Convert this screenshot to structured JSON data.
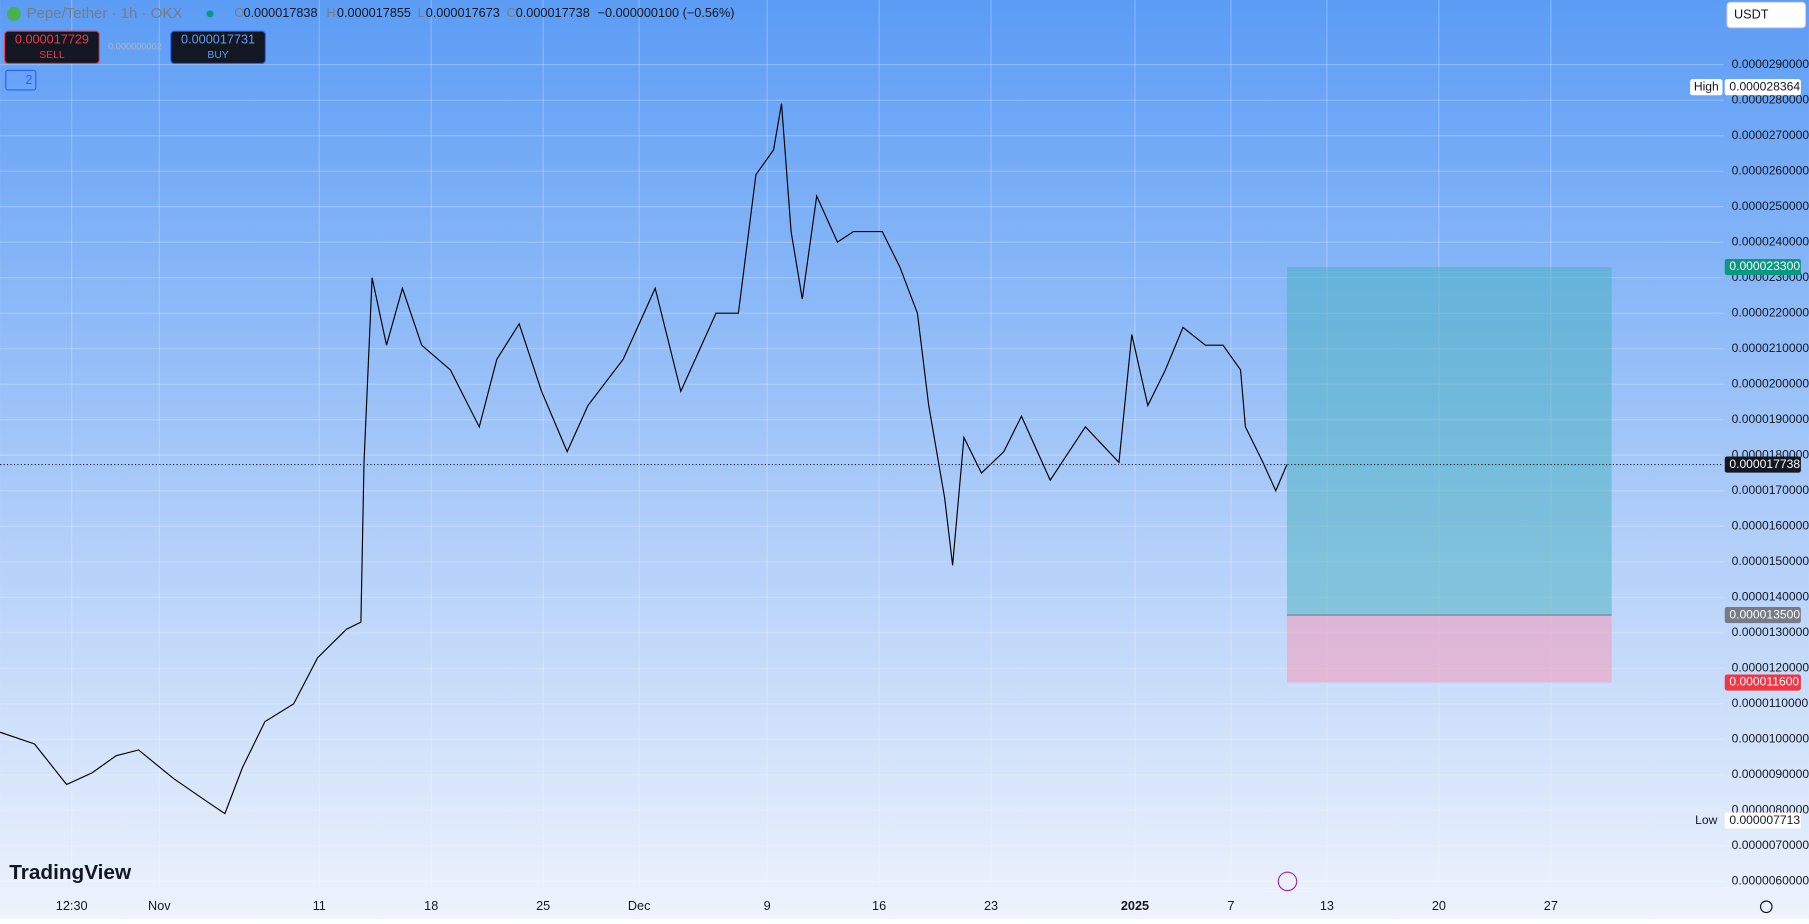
{
  "header": {
    "symbol": "Pepe/Tether · 1h · OKX",
    "open_label": "O",
    "open": "0.000017838",
    "high_label": "H",
    "high": "0.000017855",
    "low_label": "L",
    "low": "0.000017673",
    "close_label": "C",
    "close": "0.000017738",
    "change": "−0.000000100 (−0.56%)",
    "sell_price": "0.000017729",
    "sell_label": "SELL",
    "spread": "0.000000002",
    "buy_price": "0.000017731",
    "buy_label": "BUY",
    "indicators": "2",
    "currency": "USDT",
    "brand": "TradingView"
  },
  "chart_data": {
    "type": "line",
    "x": [
      -9.96,
      -7.8,
      -5.8,
      -4.2,
      -2.7,
      -1.3,
      0.9,
      3.0,
      4.1,
      5.2,
      6.6,
      8.4,
      9.9,
      11.7,
      12.6,
      12.8,
      13.3,
      14.2,
      15.2,
      16.4,
      18.2,
      20.0,
      21.1,
      22.5,
      23.9,
      25.5,
      26.8,
      29.0,
      31.0,
      32.6,
      34.8,
      36.2,
      37.3,
      38.4,
      38.9,
      39.5,
      40.2,
      41.1,
      42.4,
      43.4,
      45.2,
      46.3,
      47.4,
      48.1,
      49.1,
      49.6,
      50.3,
      51.4,
      52.8,
      53.9,
      55.7,
      57.9,
      60.0,
      60.8,
      61.8,
      62.9,
      64.0,
      65.4,
      66.5,
      67.6,
      67.9,
      69.0,
      69.8,
      70.5
    ],
    "series": [
      {
        "name": "Pepe/Tether",
        "color": "#000000",
        "values": [
          1.02e-05,
          9.87e-06,
          8.73e-06,
          9.06e-06,
          9.54e-06,
          9.7e-06,
          8.89e-06,
          8.24e-06,
          7.91e-06,
          9.21e-06,
          1.05e-05,
          1.1e-05,
          1.23e-05,
          1.31e-05,
          1.33e-05,
          1.78e-05,
          2.3e-05,
          2.11e-05,
          2.27e-05,
          2.11e-05,
          2.04e-05,
          1.88e-05,
          2.07e-05,
          2.17e-05,
          1.98e-05,
          1.81e-05,
          1.94e-05,
          2.07e-05,
          2.27e-05,
          1.98e-05,
          2.2e-05,
          2.2e-05,
          2.59e-05,
          2.66e-05,
          2.79e-05,
          2.43e-05,
          2.24e-05,
          2.53e-05,
          2.4e-05,
          2.43e-05,
          2.43e-05,
          2.33e-05,
          2.2e-05,
          1.94e-05,
          1.68e-05,
          1.49e-05,
          1.85e-05,
          1.75e-05,
          1.81e-05,
          1.91e-05,
          1.73e-05,
          1.88e-05,
          1.78e-05,
          2.14e-05,
          1.94e-05,
          2.04e-05,
          2.16e-05,
          2.11e-05,
          2.11e-05,
          2.04e-05,
          1.88e-05,
          1.78e-05,
          1.7e-05,
          1.7738e-05
        ]
      }
    ],
    "xlim": [
      -9.96,
      97.8
    ],
    "xticks": [
      {
        "value": -5.48,
        "label": "12:30"
      },
      {
        "value": 0,
        "label": "Nov"
      },
      {
        "value": 10,
        "label": "11"
      },
      {
        "value": 17,
        "label": "18"
      },
      {
        "value": 24,
        "label": "25"
      },
      {
        "value": 30,
        "label": "Dec"
      },
      {
        "value": 38,
        "label": "9"
      },
      {
        "value": 45,
        "label": "16"
      },
      {
        "value": 52,
        "label": "23"
      },
      {
        "value": 61,
        "label": "2025"
      },
      {
        "value": 67,
        "label": "7"
      },
      {
        "value": 73,
        "label": "13"
      },
      {
        "value": 80,
        "label": "20"
      },
      {
        "value": 87,
        "label": "27"
      }
    ],
    "ylim": [
      5.805e-06,
      3.082e-05
    ],
    "yticks": [
      {
        "value": 6e-06,
        "label": "0.0000060000"
      },
      {
        "value": 7e-06,
        "label": "0.0000070000"
      },
      {
        "value": 8e-06,
        "label": "0.0000080000"
      },
      {
        "value": 9e-06,
        "label": "0.0000090000"
      },
      {
        "value": 1e-05,
        "label": "0.0000100000"
      },
      {
        "value": 1.1e-05,
        "label": "0.0000110000"
      },
      {
        "value": 1.2e-05,
        "label": "0.0000120000"
      },
      {
        "value": 1.3e-05,
        "label": "0.0000130000"
      },
      {
        "value": 1.4e-05,
        "label": "0.0000140000"
      },
      {
        "value": 1.5e-05,
        "label": "0.0000150000"
      },
      {
        "value": 1.6e-05,
        "label": "0.0000160000"
      },
      {
        "value": 1.7e-05,
        "label": "0.0000170000"
      },
      {
        "value": 1.8e-05,
        "label": "0.0000180000"
      },
      {
        "value": 1.9e-05,
        "label": "0.0000190000"
      },
      {
        "value": 2e-05,
        "label": "0.0000200000"
      },
      {
        "value": 2.1e-05,
        "label": "0.0000210000"
      },
      {
        "value": 2.2e-05,
        "label": "0.0000220000"
      },
      {
        "value": 2.3e-05,
        "label": "0.0000230000"
      },
      {
        "value": 2.4e-05,
        "label": "0.0000240000"
      },
      {
        "value": 2.5e-05,
        "label": "0.0000250000"
      },
      {
        "value": 2.6e-05,
        "label": "0.0000260000"
      },
      {
        "value": 2.7e-05,
        "label": "0.0000270000"
      },
      {
        "value": 2.8e-05,
        "label": "0.0000280000"
      },
      {
        "value": 2.9e-05,
        "label": "0.0000290000"
      }
    ],
    "grid": true,
    "position": {
      "x_start": 70.5,
      "x_end": 90.8,
      "target": 2.33e-05,
      "entry": 1.35e-05,
      "stop": 1.16e-05,
      "target_color": "#3fb0b8",
      "stop_color": "#f2a0c0"
    },
    "price_labels": [
      {
        "label": "High",
        "value": 2.8364e-05,
        "color": "#ffffff"
      },
      {
        "value": 2.33e-05,
        "value_label": "0.000023300",
        "color": "#089981"
      },
      {
        "value": 1.7738e-05,
        "color": "#131722",
        "line": true
      },
      {
        "value": 1.35e-05,
        "value_label": "0.000013500",
        "color": "#787b86"
      },
      {
        "value": 1.16e-05,
        "value_label": "0.000011600",
        "color": "#f23645"
      },
      {
        "label": "Low",
        "value": 7.713e-06,
        "color": "#ffffff"
      }
    ]
  }
}
